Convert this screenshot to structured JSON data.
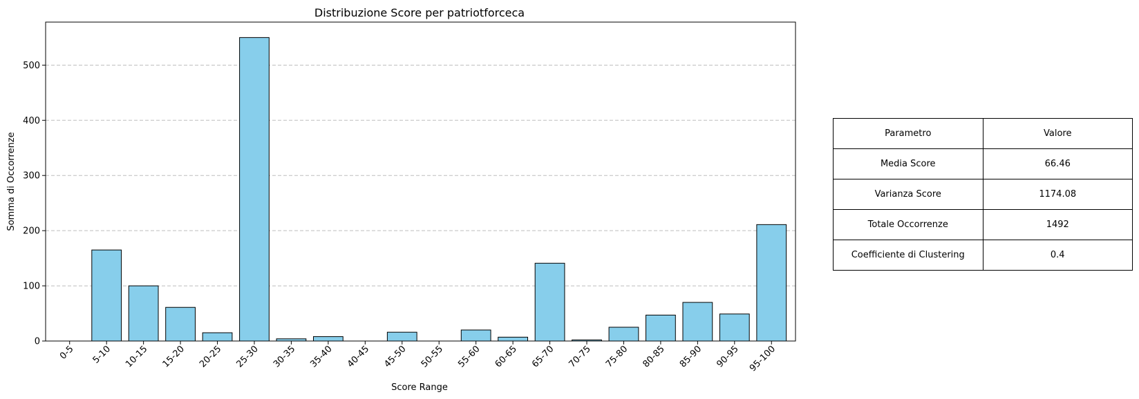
{
  "chart_data": {
    "type": "bar",
    "title": "Distribuzione Score per patriotforceca",
    "xlabel": "Score Range",
    "ylabel": "Somma di Occorrenze",
    "categories": [
      "0-5",
      "5-10",
      "10-15",
      "15-20",
      "20-25",
      "25-30",
      "30-35",
      "35-40",
      "40-45",
      "45-50",
      "50-55",
      "55-60",
      "60-65",
      "65-70",
      "70-75",
      "75-80",
      "80-85",
      "85-90",
      "90-95",
      "95-100"
    ],
    "values": [
      0,
      165,
      100,
      61,
      15,
      550,
      4,
      8,
      0,
      16,
      0,
      20,
      7,
      141,
      2,
      25,
      47,
      70,
      49,
      211
    ],
    "ylim": [
      0,
      578
    ],
    "yticks": [
      0,
      100,
      200,
      300,
      400,
      500
    ],
    "grid": "y-dashed",
    "legend": "none",
    "bar_color": "#87CEEB",
    "edge_color": "#000000"
  },
  "table": {
    "headers": [
      "Parametro",
      "Valore"
    ],
    "rows": [
      [
        "Media Score",
        "66.46"
      ],
      [
        "Varianza Score",
        "1174.08"
      ],
      [
        "Totale Occorrenze",
        "1492"
      ],
      [
        "Coefficiente di Clustering",
        "0.4"
      ]
    ]
  }
}
